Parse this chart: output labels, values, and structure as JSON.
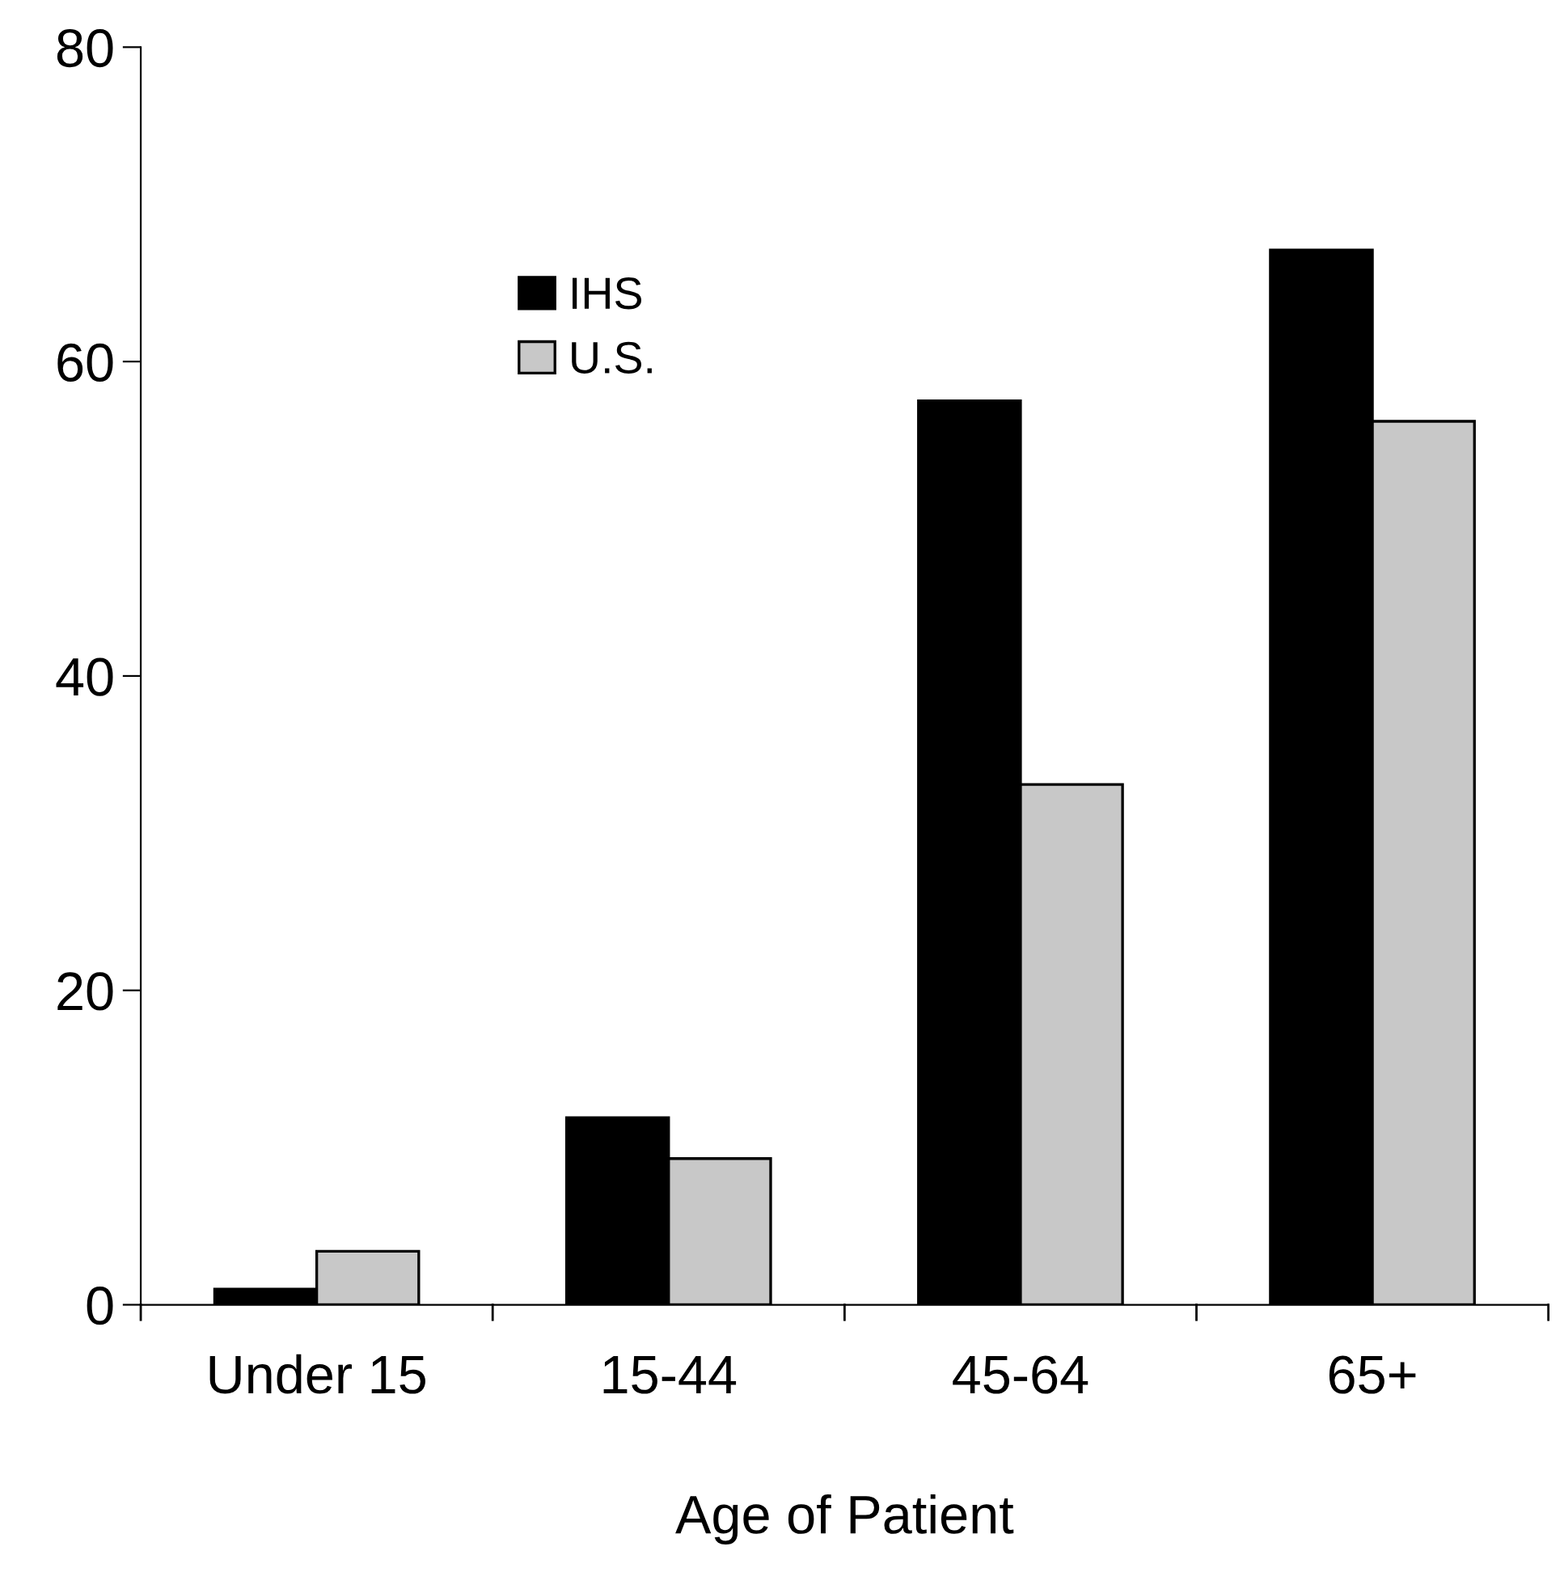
{
  "chart_data": {
    "type": "bar",
    "xlabel": "Age of Patient",
    "categories": [
      "Under 15",
      "15-44",
      "45-64",
      "65+"
    ],
    "series": [
      {
        "name": "IHS",
        "color": "#000000",
        "values": [
          1.0,
          11.9,
          57.5,
          67.1
        ]
      },
      {
        "name": "U.S.",
        "color": "#c8c8c8",
        "values": [
          3.4,
          9.3,
          33.1,
          56.2
        ]
      }
    ],
    "ylim": [
      0,
      80
    ],
    "yticks": [
      0,
      20,
      40,
      60,
      80
    ],
    "grid": false,
    "legend": "top left"
  }
}
